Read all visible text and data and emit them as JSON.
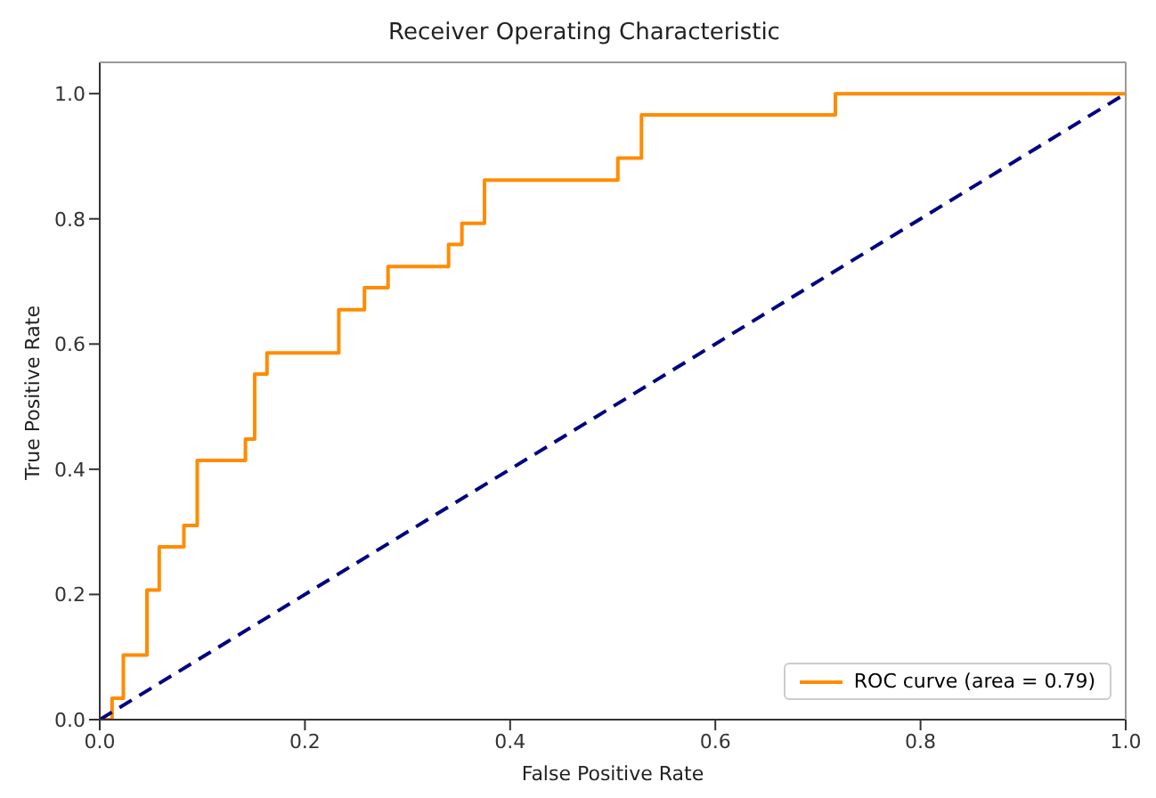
{
  "chart_data": {
    "type": "line",
    "title": "Receiver Operating Characteristic",
    "xlabel": "False Positive Rate",
    "ylabel": "True Positive Rate",
    "xlim": [
      0,
      1
    ],
    "ylim": [
      0,
      1.05
    ],
    "xticks": [
      {
        "value": 0,
        "label": "0.0"
      },
      {
        "value": 0.2,
        "label": "0.2"
      },
      {
        "value": 0.4,
        "label": "0.4"
      },
      {
        "value": 0.6,
        "label": "0.6"
      },
      {
        "value": 0.8,
        "label": "0.8"
      },
      {
        "value": 1,
        "label": "1.0"
      }
    ],
    "yticks": [
      {
        "value": 0,
        "label": "0.0"
      },
      {
        "value": 0.2,
        "label": "0.2"
      },
      {
        "value": 0.4,
        "label": "0.4"
      },
      {
        "value": 0.6,
        "label": "0.6"
      },
      {
        "value": 0.8,
        "label": "0.8"
      },
      {
        "value": 1,
        "label": "1.0"
      }
    ],
    "grid": false,
    "legend": "bottom right",
    "marker": "none",
    "series": [
      {
        "name": "ROC curve (area = 0.79)",
        "color": "#ff8c00",
        "line_style": "solid",
        "x": [
          0,
          0.012,
          0.012,
          0.023,
          0.023,
          0.046,
          0.046,
          0.058,
          0.058,
          0.082,
          0.082,
          0.095,
          0.095,
          0.142,
          0.142,
          0.151,
          0.151,
          0.163,
          0.163,
          0.233,
          0.233,
          0.258,
          0.258,
          0.281,
          0.281,
          0.34,
          0.34,
          0.353,
          0.353,
          0.375,
          0.375,
          0.505,
          0.505,
          0.528,
          0.528,
          0.717,
          0.717,
          1
        ],
        "values": [
          0,
          0,
          0.034,
          0.034,
          0.103,
          0.103,
          0.207,
          0.207,
          0.276,
          0.276,
          0.31,
          0.31,
          0.414,
          0.414,
          0.448,
          0.448,
          0.552,
          0.552,
          0.586,
          0.586,
          0.655,
          0.655,
          0.69,
          0.69,
          0.724,
          0.724,
          0.759,
          0.759,
          0.793,
          0.793,
          0.862,
          0.862,
          0.897,
          0.897,
          0.966,
          0.966,
          1,
          1
        ]
      },
      {
        "color": "#000080",
        "line_style": "dashed",
        "x": [
          0,
          1
        ],
        "values": [
          0,
          1
        ]
      }
    ]
  }
}
